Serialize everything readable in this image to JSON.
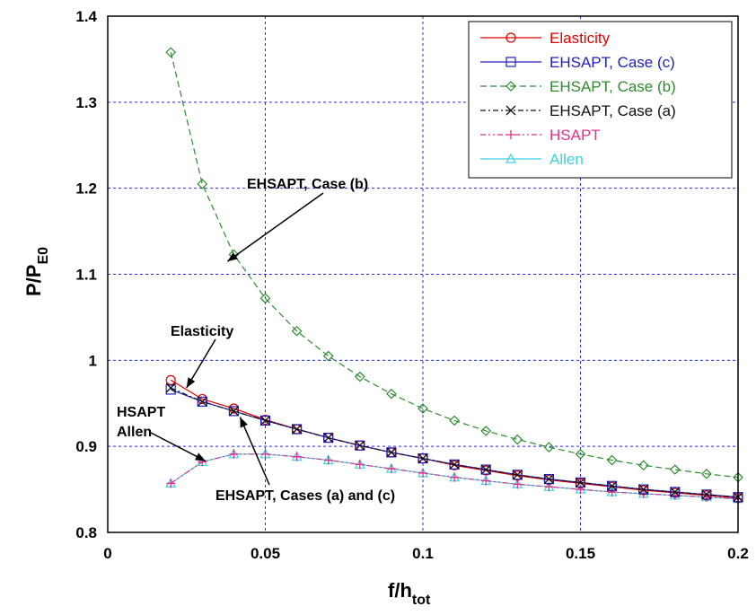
{
  "chart_data": {
    "type": "line",
    "xlabel": {
      "main": "f/h",
      "sub": "tot"
    },
    "ylabel": {
      "main": "P/P",
      "sub": "E0"
    },
    "xlim": [
      0,
      0.2
    ],
    "ylim": [
      0.8,
      1.4
    ],
    "xticks": [
      "0",
      "0.05",
      "0.1",
      "0.15",
      "0.2"
    ],
    "yticks": [
      "0.8",
      "0.9",
      "1",
      "1.1",
      "1.2",
      "1.3",
      "1.4"
    ],
    "grid": true,
    "legend_position": "top-right",
    "x": [
      0.02,
      0.03,
      0.04,
      0.05,
      0.06,
      0.07,
      0.08,
      0.09,
      0.1,
      0.11,
      0.12,
      0.13,
      0.14,
      0.15,
      0.16,
      0.17,
      0.18,
      0.19,
      0.2
    ],
    "series": [
      {
        "name": "Elasticity",
        "color": "#e00000",
        "marker": "circle",
        "dash": "solid",
        "values": [
          0.977,
          0.955,
          0.944,
          0.931,
          0.92,
          0.91,
          0.901,
          0.893,
          0.886,
          0.878,
          0.872,
          0.866,
          0.861,
          0.857,
          0.853,
          0.849,
          0.846,
          0.843,
          0.84
        ]
      },
      {
        "name": "EHSAPT, Case (c)",
        "color": "#2020c0",
        "marker": "square",
        "dash": "solid",
        "values": [
          0.966,
          0.952,
          0.941,
          0.93,
          0.92,
          0.91,
          0.901,
          0.893,
          0.886,
          0.879,
          0.873,
          0.867,
          0.862,
          0.858,
          0.854,
          0.85,
          0.847,
          0.844,
          0.841
        ]
      },
      {
        "name": "EHSAPT, Case (b)",
        "color": "#2e8b2e",
        "marker": "diamond",
        "dash": "dashed",
        "values": [
          1.358,
          1.205,
          1.123,
          1.072,
          1.034,
          1.005,
          0.981,
          0.961,
          0.944,
          0.93,
          0.918,
          0.908,
          0.899,
          0.891,
          0.884,
          0.878,
          0.873,
          0.868,
          0.864
        ]
      },
      {
        "name": "EHSAPT, Case (a)",
        "color": "#111111",
        "marker": "x",
        "dash": "dashdot",
        "values": [
          0.968,
          0.952,
          0.941,
          0.93,
          0.92,
          0.91,
          0.901,
          0.893,
          0.886,
          0.879,
          0.873,
          0.867,
          0.862,
          0.858,
          0.854,
          0.85,
          0.847,
          0.844,
          0.841
        ]
      },
      {
        "name": "HSAPT",
        "color": "#e0308a",
        "marker": "plus",
        "dash": "dashdotdot",
        "values": [
          0.857,
          0.882,
          0.891,
          0.891,
          0.888,
          0.884,
          0.879,
          0.874,
          0.869,
          0.864,
          0.86,
          0.856,
          0.853,
          0.85,
          0.847,
          0.845,
          0.843,
          0.841,
          0.839
        ]
      },
      {
        "name": "Allen",
        "color": "#40d0e0",
        "marker": "triangle",
        "dash": "solid",
        "values": [
          0.857,
          0.882,
          0.891,
          0.891,
          0.888,
          0.884,
          0.879,
          0.874,
          0.869,
          0.864,
          0.86,
          0.856,
          0.853,
          0.85,
          0.847,
          0.845,
          0.843,
          0.841,
          0.839
        ]
      }
    ],
    "annotations": [
      {
        "lines": [
          "EHSAPT, Case (b)"
        ],
        "arrow_to": [
          0.038,
          1.115
        ]
      },
      {
        "lines": [
          "Elasticity"
        ],
        "arrow_to": [
          0.025,
          0.968
        ]
      },
      {
        "lines": [
          "HSAPT",
          "Allen"
        ],
        "arrow_to": [
          0.031,
          0.883
        ]
      },
      {
        "lines": [
          "EHSAPT, Cases (a) and (c)"
        ],
        "arrow_to": [
          0.042,
          0.934
        ]
      }
    ]
  }
}
